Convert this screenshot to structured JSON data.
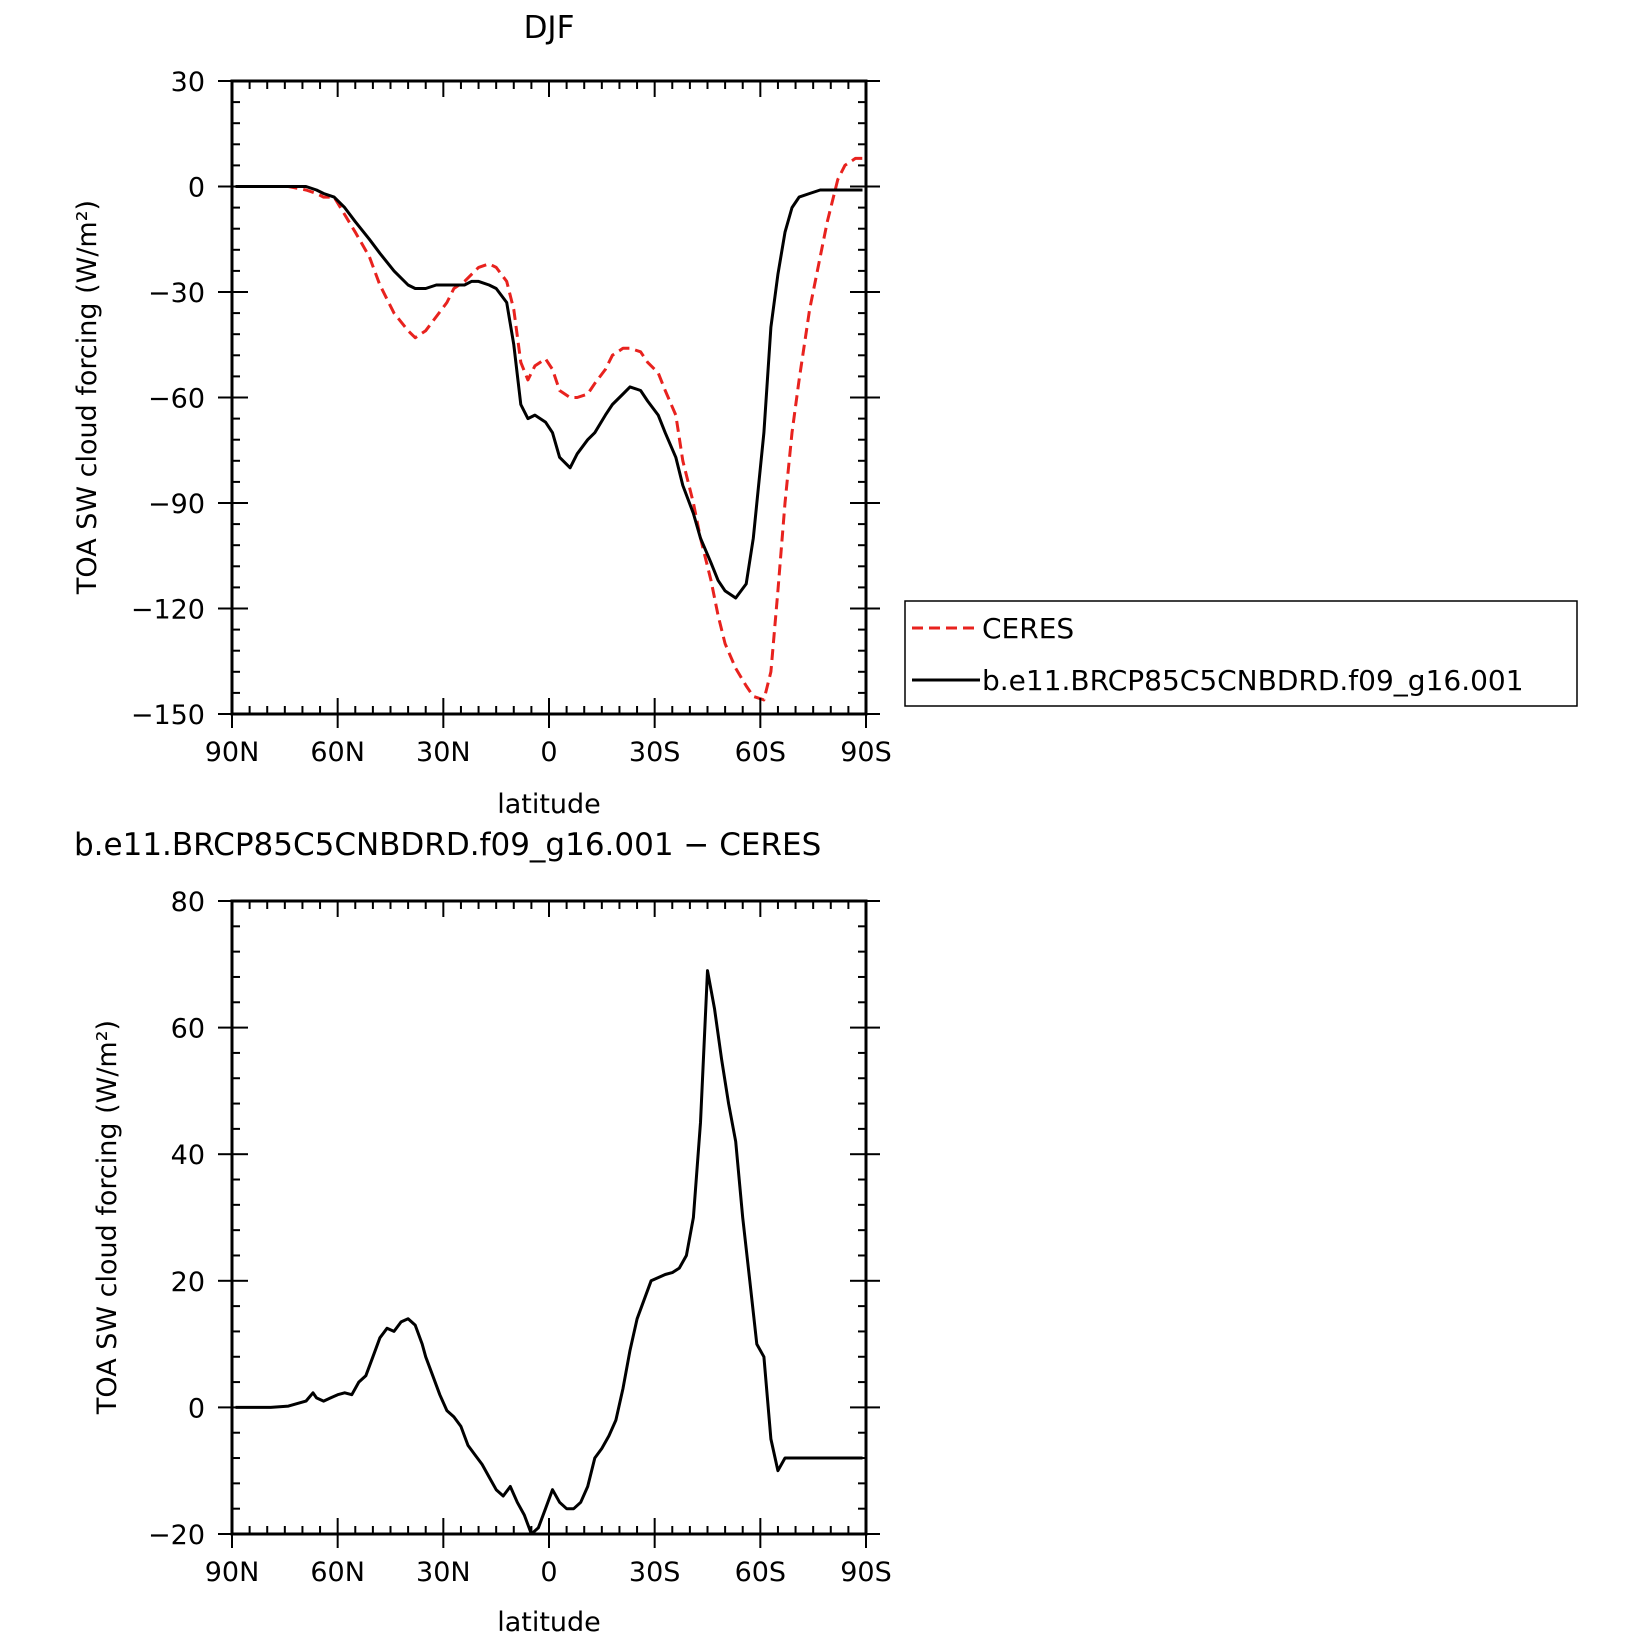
{
  "chart_data": [
    {
      "type": "line",
      "title": "DJF",
      "xlabel": "latitude",
      "ylabel": "TOA SW cloud forcing (W/m²)",
      "xlim": [
        90,
        -90
      ],
      "ylim": [
        -150,
        30
      ],
      "x_ticks": [
        90,
        60,
        30,
        0,
        -30,
        -60,
        -90
      ],
      "x_tick_labels": [
        "90N",
        "60N",
        "30N",
        "0",
        "30S",
        "60S",
        "90S"
      ],
      "y_ticks": [
        30,
        0,
        -30,
        -60,
        -90,
        -120,
        -150
      ],
      "y_tick_labels": [
        "30",
        "0",
        "−30",
        "−60",
        "−90",
        "−120",
        "−150"
      ],
      "grid": false,
      "legend": "right",
      "series": [
        {
          "name": "CERES",
          "color": "#e8221e",
          "dash": "dashed",
          "x": [
            89,
            84,
            79,
            74,
            69,
            66,
            64,
            61,
            58,
            55,
            51,
            48,
            44,
            40,
            38,
            35,
            32,
            29,
            27,
            24,
            22,
            20,
            17,
            15,
            12,
            10,
            8,
            6,
            4,
            1,
            -1,
            -3,
            -6,
            -8,
            -11,
            -13,
            -16,
            -18,
            -21,
            -23,
            -26,
            -28,
            -31,
            -33,
            -36,
            -38,
            -41,
            -43,
            -46,
            -48,
            -50,
            -53,
            -56,
            -58,
            -61,
            -63,
            -65,
            -67,
            -69,
            -71,
            -74,
            -77,
            -79,
            -82,
            -84,
            -87,
            -89
          ],
          "y": [
            0,
            0,
            0,
            0,
            -1,
            -2,
            -3,
            -3,
            -8,
            -13,
            -20,
            -28,
            -36,
            -41,
            -43,
            -41,
            -37,
            -33,
            -29,
            -27,
            -25,
            -23,
            -22,
            -23,
            -27,
            -35,
            -50,
            -55,
            -51,
            -49,
            -52,
            -58,
            -60,
            -60,
            -59,
            -56,
            -52,
            -48,
            -46,
            -46,
            -47,
            -50,
            -53,
            -58,
            -65,
            -78,
            -90,
            -100,
            -112,
            -122,
            -130,
            -137,
            -142,
            -145,
            -146,
            -138,
            -115,
            -90,
            -70,
            -55,
            -35,
            -20,
            -10,
            2,
            6,
            8,
            8
          ]
        },
        {
          "name": "b.e11.BRCP85C5CNBDRD.f09_g16.001",
          "color": "#000000",
          "dash": "solid",
          "x": [
            89,
            84,
            79,
            74,
            69,
            66,
            64,
            61,
            58,
            55,
            51,
            48,
            44,
            40,
            38,
            35,
            32,
            29,
            27,
            24,
            22,
            20,
            17,
            15,
            12,
            10,
            8,
            6,
            4,
            1,
            -1,
            -3,
            -6,
            -8,
            -11,
            -13,
            -16,
            -18,
            -21,
            -23,
            -26,
            -28,
            -31,
            -33,
            -36,
            -38,
            -41,
            -43,
            -46,
            -48,
            -50,
            -53,
            -56,
            -58,
            -61,
            -63,
            -65,
            -67,
            -69,
            -71,
            -74,
            -77,
            -79,
            -82,
            -84,
            -87,
            -89
          ],
          "y": [
            0,
            0,
            0,
            0,
            0,
            -1,
            -2,
            -3,
            -6,
            -10,
            -15,
            -19,
            -24,
            -28,
            -29,
            -29,
            -28,
            -28,
            -28,
            -28,
            -27,
            -27,
            -28,
            -29,
            -33,
            -45,
            -62,
            -66,
            -65,
            -67,
            -70,
            -77,
            -80,
            -76,
            -72,
            -70,
            -65,
            -62,
            -59,
            -57,
            -58,
            -61,
            -65,
            -70,
            -77,
            -85,
            -93,
            -100,
            -107,
            -112,
            -115,
            -117,
            -113,
            -100,
            -70,
            -40,
            -25,
            -13,
            -6,
            -3,
            -2,
            -1,
            -1,
            -1,
            -1,
            -1,
            -1
          ]
        }
      ]
    },
    {
      "type": "line",
      "title": "b.e11.BRCP85C5CNBDRD.f09_g16.001 − CERES",
      "xlabel": "latitude",
      "ylabel": "TOA SW cloud forcing (W/m²)",
      "xlim": [
        90,
        -90
      ],
      "ylim": [
        -20,
        80
      ],
      "x_ticks": [
        90,
        60,
        30,
        0,
        -30,
        -60,
        -90
      ],
      "x_tick_labels": [
        "90N",
        "60N",
        "30N",
        "0",
        "30S",
        "60S",
        "90S"
      ],
      "y_ticks": [
        80,
        60,
        40,
        20,
        0,
        -20
      ],
      "y_tick_labels": [
        "80",
        "60",
        "40",
        "20",
        "0",
        "−20"
      ],
      "grid": false,
      "series": [
        {
          "color": "#000000",
          "dash": "solid",
          "x": [
            89,
            84,
            79,
            74,
            69,
            67,
            66,
            64,
            62,
            60,
            58,
            56,
            54,
            52,
            50,
            48,
            46,
            44,
            42,
            40,
            38,
            36,
            35,
            33,
            31,
            29,
            27,
            25,
            23,
            21,
            19,
            17,
            15,
            13,
            11,
            9,
            7,
            5,
            3,
            1,
            -1,
            -3,
            -5,
            -7,
            -9,
            -11,
            -13,
            -15,
            -17,
            -19,
            -21,
            -23,
            -25,
            -27,
            -29,
            -31,
            -33,
            -35,
            -37,
            -39,
            -41,
            -43,
            -45,
            -47,
            -49,
            -51,
            -53,
            -55,
            -57,
            -59,
            -61,
            -63,
            -65,
            -67,
            -69,
            -71,
            -73,
            -75,
            -77,
            -79,
            -81,
            -83,
            -85,
            -87,
            -89
          ],
          "y": [
            0,
            0,
            0,
            0.2,
            1,
            2.3,
            1.5,
            1,
            1.5,
            2,
            2.3,
            2,
            4,
            5,
            8,
            11,
            12.5,
            12,
            13.5,
            14,
            13,
            10,
            8,
            5,
            2,
            -0.5,
            -1.5,
            -3,
            -6,
            -7.5,
            -9,
            -11,
            -13,
            -14,
            -12.5,
            -15,
            -17,
            -20,
            -19,
            -16,
            -13,
            -15,
            -16,
            -16,
            -15,
            -12.5,
            -8,
            -6.5,
            -4.5,
            -2,
            3,
            9,
            14,
            17,
            20,
            20.5,
            21,
            21.3,
            22,
            24,
            30,
            45,
            69,
            63,
            55,
            48,
            42,
            30,
            20,
            10,
            8,
            -5,
            -10,
            -8,
            -8,
            -8,
            -8,
            -8,
            -8,
            -8,
            -8,
            -8,
            -8,
            -8,
            -8
          ]
        }
      ]
    }
  ]
}
